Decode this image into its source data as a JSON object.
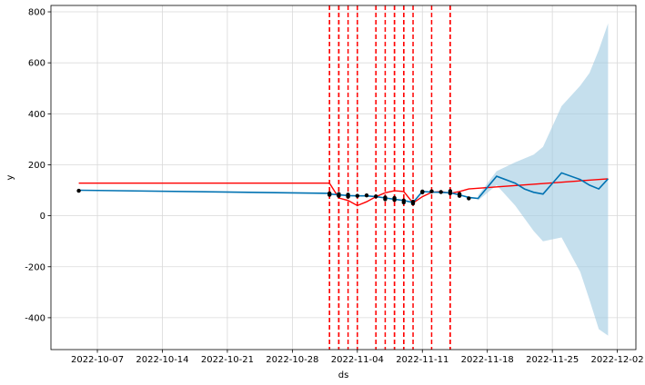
{
  "chart_data": {
    "type": "line",
    "title": "",
    "xlabel": "ds",
    "ylabel": "y",
    "grid": true,
    "legend": "none",
    "x_tick_labels": [
      "2022-10-07",
      "2022-10-14",
      "2022-10-21",
      "2022-10-28",
      "2022-11-04",
      "2022-11-11",
      "2022-11-18",
      "2022-11-25",
      "2022-12-02"
    ],
    "y_ticks": [
      -400,
      -200,
      0,
      200,
      400,
      600,
      800
    ],
    "xlim": [
      "2022-10-02",
      "2022-12-04"
    ],
    "ylim": [
      -525,
      825
    ],
    "colors": {
      "forecast": "#0072B2",
      "interval": "#9ECAE1",
      "trend": "#FF0000",
      "changepoint": "#FF0000",
      "observed": "#000000"
    },
    "series": [
      {
        "role": "observed",
        "x": [
          "2022-10-05",
          "2022-11-01",
          "2022-11-01",
          "2022-11-02",
          "2022-11-02",
          "2022-11-03",
          "2022-11-03",
          "2022-11-04",
          "2022-11-05",
          "2022-11-06",
          "2022-11-07",
          "2022-11-07",
          "2022-11-08",
          "2022-11-08",
          "2022-11-09",
          "2022-11-09",
          "2022-11-10",
          "2022-11-10",
          "2022-11-11",
          "2022-11-11",
          "2022-11-12",
          "2022-11-13",
          "2022-11-14",
          "2022-11-14",
          "2022-11-15",
          "2022-11-15",
          "2022-11-16"
        ],
        "values": [
          98,
          88,
          82,
          85,
          78,
          83,
          75,
          78,
          80,
          76,
          72,
          65,
          70,
          62,
          60,
          52,
          55,
          48,
          95,
          92,
          96,
          93,
          97,
          88,
          85,
          78,
          68
        ]
      },
      {
        "role": "forecast",
        "x": [
          "2022-10-05",
          "2022-11-01",
          "2022-11-01",
          "2022-11-02",
          "2022-11-03",
          "2022-11-04",
          "2022-11-05",
          "2022-11-06",
          "2022-11-07",
          "2022-11-08",
          "2022-11-09",
          "2022-11-10",
          "2022-11-11",
          "2022-11-12",
          "2022-11-13",
          "2022-11-14",
          "2022-11-15",
          "2022-11-16",
          "2022-11-17",
          "2022-11-19",
          "2022-11-21",
          "2022-11-22",
          "2022-11-23",
          "2022-11-24",
          "2022-11-26",
          "2022-11-28",
          "2022-11-29",
          "2022-11-30",
          "2022-12-01"
        ],
        "values": [
          100,
          88,
          85,
          82,
          79,
          78,
          78,
          75,
          70,
          65,
          60,
          52,
          95,
          93,
          92,
          90,
          82,
          72,
          68,
          155,
          128,
          105,
          92,
          85,
          168,
          142,
          120,
          105,
          145
        ]
      },
      {
        "role": "interval_upper",
        "x": [
          "2022-11-17",
          "2022-11-19",
          "2022-11-21",
          "2022-11-23",
          "2022-11-24",
          "2022-11-26",
          "2022-11-28",
          "2022-11-29",
          "2022-11-30",
          "2022-12-01"
        ],
        "values": [
          80,
          175,
          210,
          240,
          270,
          430,
          510,
          560,
          650,
          755
        ]
      },
      {
        "role": "interval_lower",
        "x": [
          "2022-11-17",
          "2022-11-19",
          "2022-11-21",
          "2022-11-23",
          "2022-11-24",
          "2022-11-26",
          "2022-11-28",
          "2022-11-29",
          "2022-11-30",
          "2022-12-01"
        ],
        "values": [
          60,
          120,
          40,
          -60,
          -100,
          -85,
          -220,
          -330,
          -445,
          -470
        ]
      },
      {
        "role": "trend",
        "x": [
          "2022-10-05",
          "2022-11-01",
          "2022-11-02",
          "2022-11-03",
          "2022-11-04",
          "2022-11-05",
          "2022-11-06",
          "2022-11-07",
          "2022-11-08",
          "2022-11-09",
          "2022-11-10",
          "2022-11-11",
          "2022-11-12",
          "2022-11-13",
          "2022-11-14",
          "2022-11-15",
          "2022-11-16",
          "2022-12-01"
        ],
        "values": [
          128,
          128,
          70,
          60,
          40,
          55,
          75,
          90,
          98,
          95,
          50,
          75,
          92,
          95,
          88,
          95,
          105,
          145
        ]
      }
    ],
    "changepoints": [
      "2022-11-01",
      "2022-11-01",
      "2022-11-02",
      "2022-11-02",
      "2022-11-03",
      "2022-11-04",
      "2022-11-06",
      "2022-11-06",
      "2022-11-07",
      "2022-11-08",
      "2022-11-08",
      "2022-11-09",
      "2022-11-09",
      "2022-11-10",
      "2022-11-12",
      "2022-11-14",
      "2022-11-14"
    ]
  }
}
